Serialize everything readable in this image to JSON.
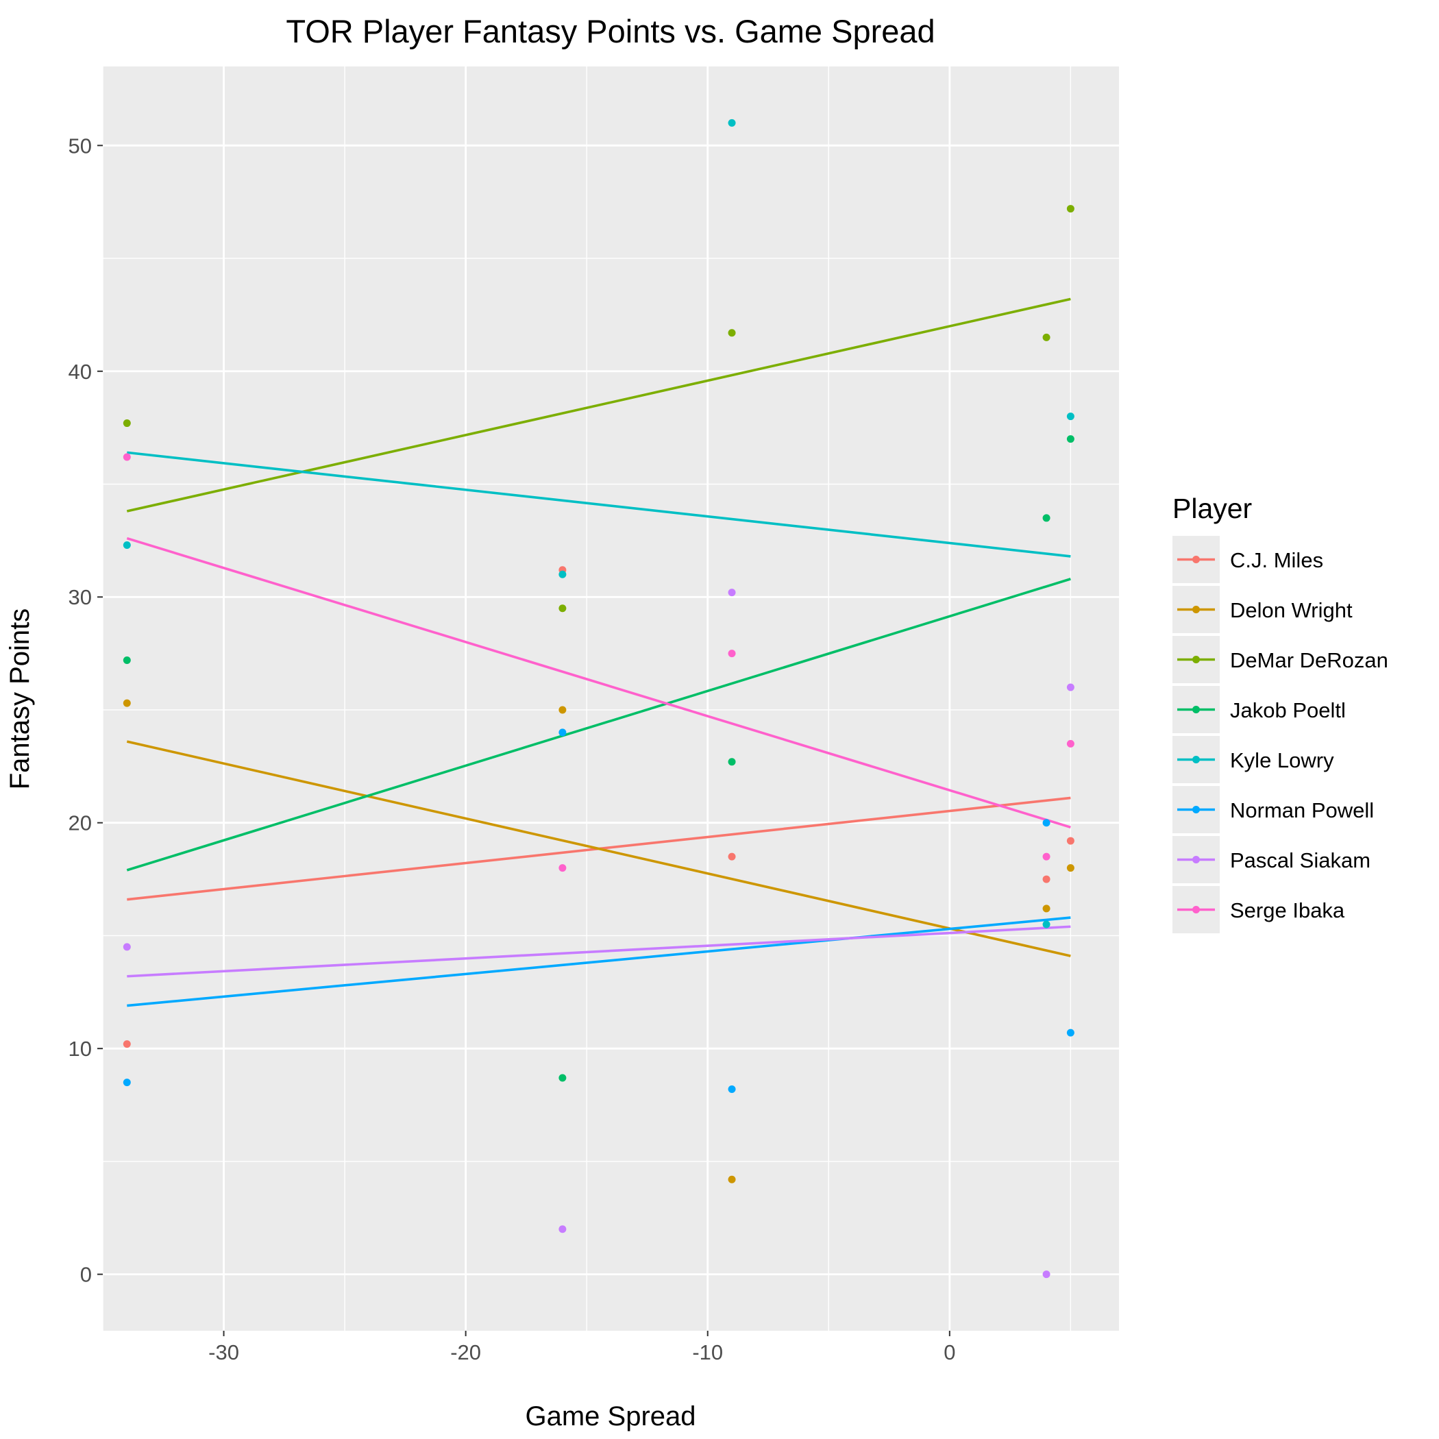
{
  "chart_data": {
    "type": "scatter",
    "title": "TOR Player Fantasy Points vs. Game Spread",
    "xlabel": "Game Spread",
    "ylabel": "Fantasy Points",
    "xlim": [
      -35,
      7
    ],
    "ylim": [
      -2.5,
      53.5
    ],
    "xticks": [
      -30,
      -20,
      -10,
      0
    ],
    "yticks": [
      0,
      10,
      20,
      30,
      40,
      50
    ],
    "grid": true,
    "legend": {
      "title": "Player",
      "position": "right"
    },
    "series": [
      {
        "name": "C.J. Miles",
        "color": "#F8766D",
        "points": [
          [
            -34,
            10.2
          ],
          [
            -16,
            31.2
          ],
          [
            -9,
            18.5
          ],
          [
            4,
            17.5
          ],
          [
            5,
            19.2
          ]
        ],
        "fit": [
          [
            -34,
            16.6
          ],
          [
            5,
            21.1
          ]
        ]
      },
      {
        "name": "Delon Wright",
        "color": "#CD9600",
        "points": [
          [
            -34,
            25.3
          ],
          [
            -16,
            25.0
          ],
          [
            -9,
            4.2
          ],
          [
            4,
            16.2
          ],
          [
            5,
            18.0
          ]
        ],
        "fit": [
          [
            -34,
            23.6
          ],
          [
            5,
            14.1
          ]
        ]
      },
      {
        "name": "DeMar DeRozan",
        "color": "#7CAE00",
        "points": [
          [
            -34,
            37.7
          ],
          [
            -16,
            29.5
          ],
          [
            -9,
            41.7
          ],
          [
            4,
            41.5
          ],
          [
            5,
            47.2
          ]
        ],
        "fit": [
          [
            -34,
            33.8
          ],
          [
            5,
            43.2
          ]
        ]
      },
      {
        "name": "Jakob Poeltl",
        "color": "#00BE67",
        "points": [
          [
            -34,
            27.2
          ],
          [
            -16,
            8.7
          ],
          [
            -9,
            22.7
          ],
          [
            4,
            33.5
          ],
          [
            5,
            37.0
          ]
        ],
        "fit": [
          [
            -34,
            17.9
          ],
          [
            5,
            30.8
          ]
        ]
      },
      {
        "name": "Kyle Lowry",
        "color": "#00BFC4",
        "points": [
          [
            -34,
            32.3
          ],
          [
            -16,
            31.0
          ],
          [
            -9,
            51.0
          ],
          [
            4,
            15.5
          ],
          [
            5,
            38.0
          ]
        ],
        "fit": [
          [
            -34,
            36.4
          ],
          [
            5,
            31.8
          ]
        ]
      },
      {
        "name": "Norman Powell",
        "color": "#00A9FF",
        "points": [
          [
            -34,
            8.5
          ],
          [
            -16,
            24.0
          ],
          [
            -9,
            8.2
          ],
          [
            4,
            20.0
          ],
          [
            5,
            10.7
          ]
        ],
        "fit": [
          [
            -34,
            11.9
          ],
          [
            5,
            15.8
          ]
        ]
      },
      {
        "name": "Pascal Siakam",
        "color": "#C77CFF",
        "points": [
          [
            -34,
            14.5
          ],
          [
            -16,
            2.0
          ],
          [
            -9,
            30.2
          ],
          [
            4,
            0.0
          ],
          [
            5,
            26.0
          ]
        ],
        "fit": [
          [
            -34,
            13.2
          ],
          [
            5,
            15.4
          ]
        ]
      },
      {
        "name": "Serge Ibaka",
        "color": "#FF61CC",
        "points": [
          [
            -34,
            36.2
          ],
          [
            -16,
            18.0
          ],
          [
            -9,
            27.5
          ],
          [
            4,
            18.5
          ],
          [
            5,
            23.5
          ]
        ],
        "fit": [
          [
            -34,
            32.6
          ],
          [
            5,
            19.8
          ]
        ]
      }
    ]
  }
}
